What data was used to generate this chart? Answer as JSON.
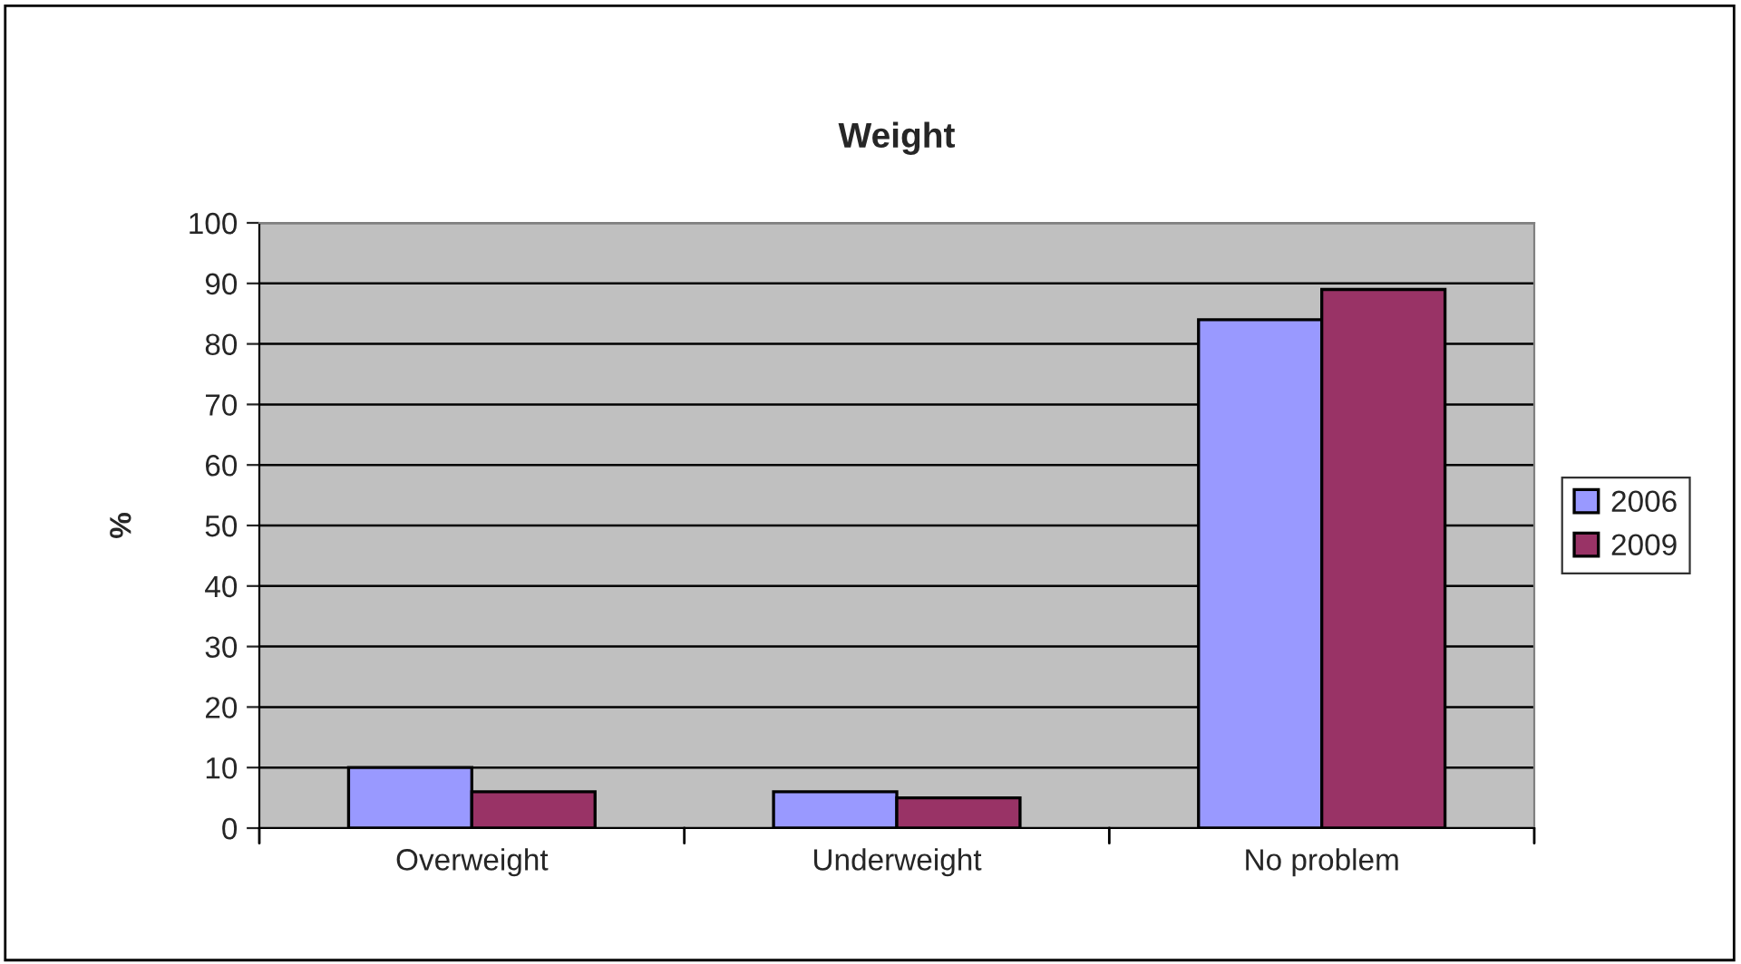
{
  "chart_data": {
    "type": "bar",
    "title": "Weight",
    "ylabel": "%",
    "categories": [
      "Overweight",
      "Underweight",
      "No problem"
    ],
    "series": [
      {
        "name": "2006",
        "color": "#9999ff",
        "values": [
          10,
          6,
          84
        ]
      },
      {
        "name": "2009",
        "color": "#993366",
        "values": [
          6,
          5,
          89
        ]
      }
    ],
    "ylim": [
      0,
      100
    ],
    "yticks": [
      0,
      10,
      20,
      30,
      40,
      50,
      60,
      70,
      80,
      90,
      100
    ],
    "grid": "y",
    "legend": "right"
  }
}
